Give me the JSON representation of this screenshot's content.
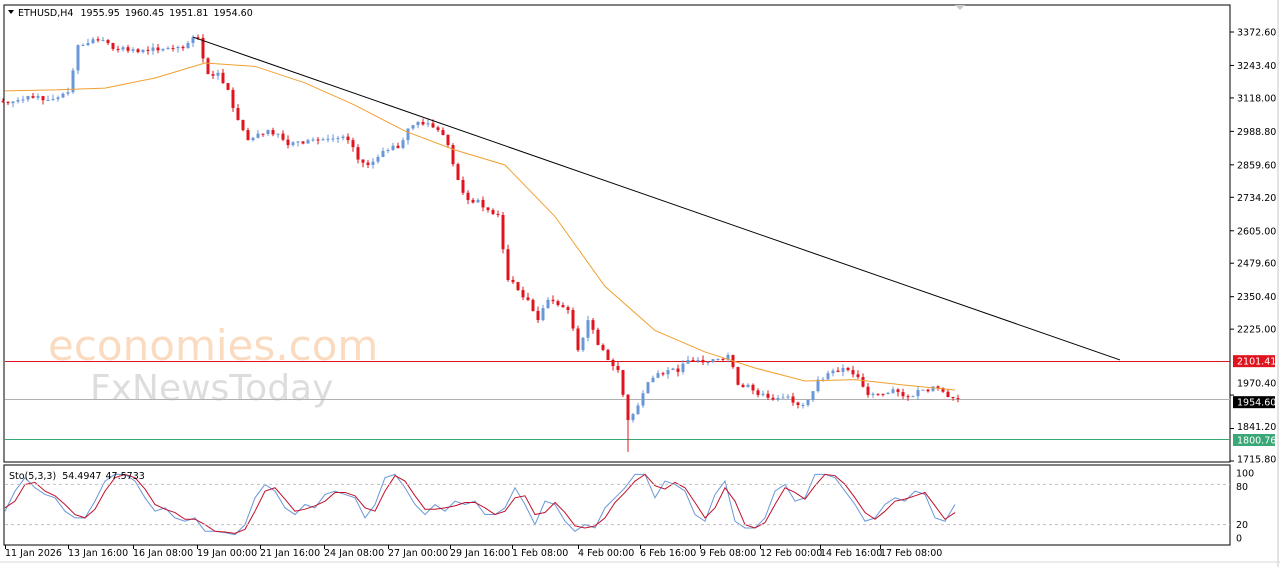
{
  "header": {
    "symbol": "ETHUSD,H4",
    "open": "1955.95",
    "high": "1960.45",
    "low": "1951.81",
    "close": "1954.60"
  },
  "stochastic": {
    "label": "Sto(5,3,3)",
    "main_value": "54.4947",
    "signal_value": "47.5733",
    "levels": [
      "100",
      "80",
      "20",
      "0"
    ]
  },
  "watermark": {
    "line1": "economies.com",
    "line2": "FxNewsToday"
  },
  "colors": {
    "bull": "#6a97d8",
    "bear": "#e0141e",
    "ma": "#f0a030",
    "trendline": "#000000",
    "resistance": "#e0141e",
    "support": "#3aa876",
    "current": "#b0b0b0",
    "stoch_main": "#6a97d8",
    "stoch_signal": "#c0102a"
  },
  "chart_data": {
    "type": "candlestick",
    "symbol": "ETHUSD",
    "timeframe": "H4",
    "y_ticks": [
      "3372.60",
      "3243.40",
      "3118.00",
      "2988.80",
      "2859.60",
      "2734.20",
      "2605.00",
      "2479.60",
      "2350.40",
      "2225.00",
      "1970.40",
      "1841.20",
      "1715.80"
    ],
    "ylim": [
      1715.8,
      3372.6
    ],
    "x_ticks": [
      "11 Jan 2026",
      "13 Jan 16:00",
      "16 Jan 08:00",
      "19 Jan 00:00",
      "21 Jan 16:00",
      "24 Jan 08:00",
      "27 Jan 00:00",
      "29 Jan 16:00",
      "1 Feb 08:00",
      "4 Feb 00:00",
      "6 Feb 16:00",
      "9 Feb 08:00",
      "12 Feb 00:00",
      "14 Feb 16:00",
      "17 Feb 08:00"
    ],
    "close_samples": [
      3098,
      3110,
      3125,
      3125,
      3110,
      3120,
      3140,
      3322,
      3330,
      3340,
      3330,
      3305,
      3300,
      3295,
      3300,
      3302,
      3311,
      3315,
      3330,
      3350,
      3210,
      3215,
      3149,
      3033,
      2955,
      2980,
      2994,
      2980,
      2936,
      2950,
      2955,
      2955,
      2960,
      2963,
      2955,
      2880,
      2859,
      2890,
      2917,
      2925,
      3000,
      3025,
      3020,
      2994,
      2936,
      2801,
      2724,
      2724,
      2685,
      2666,
      2415,
      2376,
      2338,
      2260,
      2338,
      2318,
      2299,
      2144,
      2260,
      2164,
      2106,
      2067,
      1874,
      1930,
      2020,
      2055,
      2067,
      2060,
      2106,
      2106,
      2098,
      2110,
      2125,
      2010,
      2010,
      1971,
      1960,
      1959,
      1965,
      1932,
      1952,
      2030,
      2055,
      2060,
      2067,
      2040,
      1971,
      1975,
      1979,
      1982,
      1963,
      1990,
      1985,
      1998,
      1963,
      1955
    ],
    "period_low": 1751,
    "moving_average": [
      3145,
      3149,
      3156,
      3195,
      3253,
      3240,
      3176,
      3090,
      2990,
      2917,
      2859,
      2660,
      2390,
      2220,
      2137,
      2075,
      2025,
      2030,
      2009,
      1990
    ],
    "trendline": {
      "start_price": 3353,
      "end_price": 2106
    },
    "levels": [
      {
        "price": "2101.41",
        "kind": "resistance"
      },
      {
        "price": "1954.60",
        "kind": "current"
      },
      {
        "price": "1800.76",
        "kind": "support"
      }
    ],
    "stoch_k": [
      40,
      70,
      90,
      75,
      65,
      60,
      40,
      30,
      30,
      55,
      85,
      95,
      95,
      85,
      60,
      40,
      45,
      30,
      25,
      30,
      10,
      10,
      8,
      5,
      20,
      60,
      80,
      70,
      45,
      35,
      50,
      45,
      65,
      70,
      65,
      60,
      30,
      50,
      90,
      95,
      75,
      50,
      35,
      50,
      40,
      55,
      50,
      55,
      35,
      35,
      45,
      75,
      50,
      20,
      55,
      50,
      25,
      10,
      20,
      15,
      45,
      60,
      75,
      95,
      95,
      60,
      85,
      80,
      70,
      35,
      25,
      65,
      85,
      25,
      15,
      15,
      30,
      70,
      80,
      55,
      60,
      95,
      95,
      90,
      70,
      50,
      25,
      30,
      50,
      60,
      55,
      70,
      65,
      30,
      25,
      50
    ],
    "stoch_d": [
      45,
      55,
      80,
      83,
      70,
      63,
      50,
      35,
      30,
      43,
      70,
      90,
      95,
      90,
      73,
      50,
      43,
      38,
      28,
      28,
      20,
      10,
      9,
      7,
      13,
      40,
      70,
      75,
      58,
      40,
      43,
      48,
      55,
      68,
      68,
      63,
      45,
      40,
      70,
      93,
      85,
      63,
      43,
      43,
      45,
      48,
      53,
      53,
      45,
      35,
      40,
      60,
      63,
      35,
      38,
      53,
      38,
      18,
      15,
      18,
      30,
      53,
      68,
      85,
      95,
      78,
      73,
      83,
      75,
      53,
      30,
      45,
      75,
      55,
      20,
      15,
      23,
      50,
      75,
      68,
      58,
      78,
      95,
      93,
      80,
      60,
      38,
      28,
      40,
      55,
      58,
      63,
      68,
      48,
      28,
      38
    ],
    "grid": false
  }
}
